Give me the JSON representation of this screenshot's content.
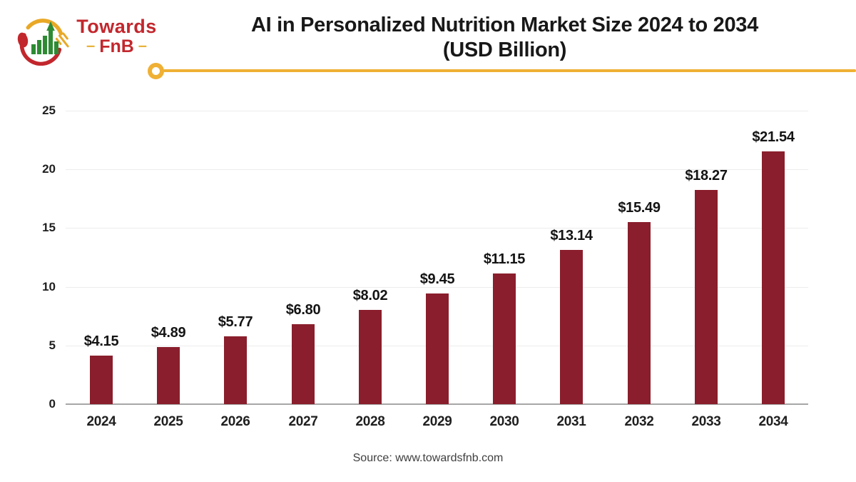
{
  "logo": {
    "brand_line1": "Towards",
    "brand_line2": "FnB",
    "dash": "–"
  },
  "header": {
    "title_line1": "AI in Personalized Nutrition Market Size 2024 to 2034",
    "title_line2": "(USD Billion)"
  },
  "footer": {
    "source": "Source: www.towardsfnb.com"
  },
  "colors": {
    "bar": "#8a1e2c",
    "accent_gold": "#efb034",
    "brand_red": "#c2272d",
    "brand_green": "#2e8b34",
    "gridline": "#ececec",
    "axis_line": "#a6a6a6"
  },
  "chart_data": {
    "type": "bar",
    "title": "AI in Personalized Nutrition Market Size 2024 to 2034 (USD Billion)",
    "title_line1": "AI in Personalized Nutrition Market Size 2024 to 2034",
    "title_line2": "(USD Billion)",
    "xlabel": "",
    "ylabel": "",
    "categories": [
      "2024",
      "2025",
      "2026",
      "2027",
      "2028",
      "2029",
      "2030",
      "2031",
      "2032",
      "2033",
      "2034"
    ],
    "values": [
      4.15,
      4.89,
      5.77,
      6.8,
      8.02,
      9.45,
      11.15,
      13.14,
      15.49,
      18.27,
      21.54
    ],
    "value_labels": [
      "$4.15",
      "$4.89",
      "$5.77",
      "$6.80",
      "$8.02",
      "$9.45",
      "$11.15",
      "$13.14",
      "$15.49",
      "$18.27",
      "$21.54"
    ],
    "ylim": [
      0,
      25
    ],
    "yticks": [
      0,
      5,
      10,
      15,
      20,
      25
    ],
    "grid": true,
    "legend": "none",
    "bar_color": "#8a1e2c",
    "source": "Source: www.towardsfnb.com"
  }
}
